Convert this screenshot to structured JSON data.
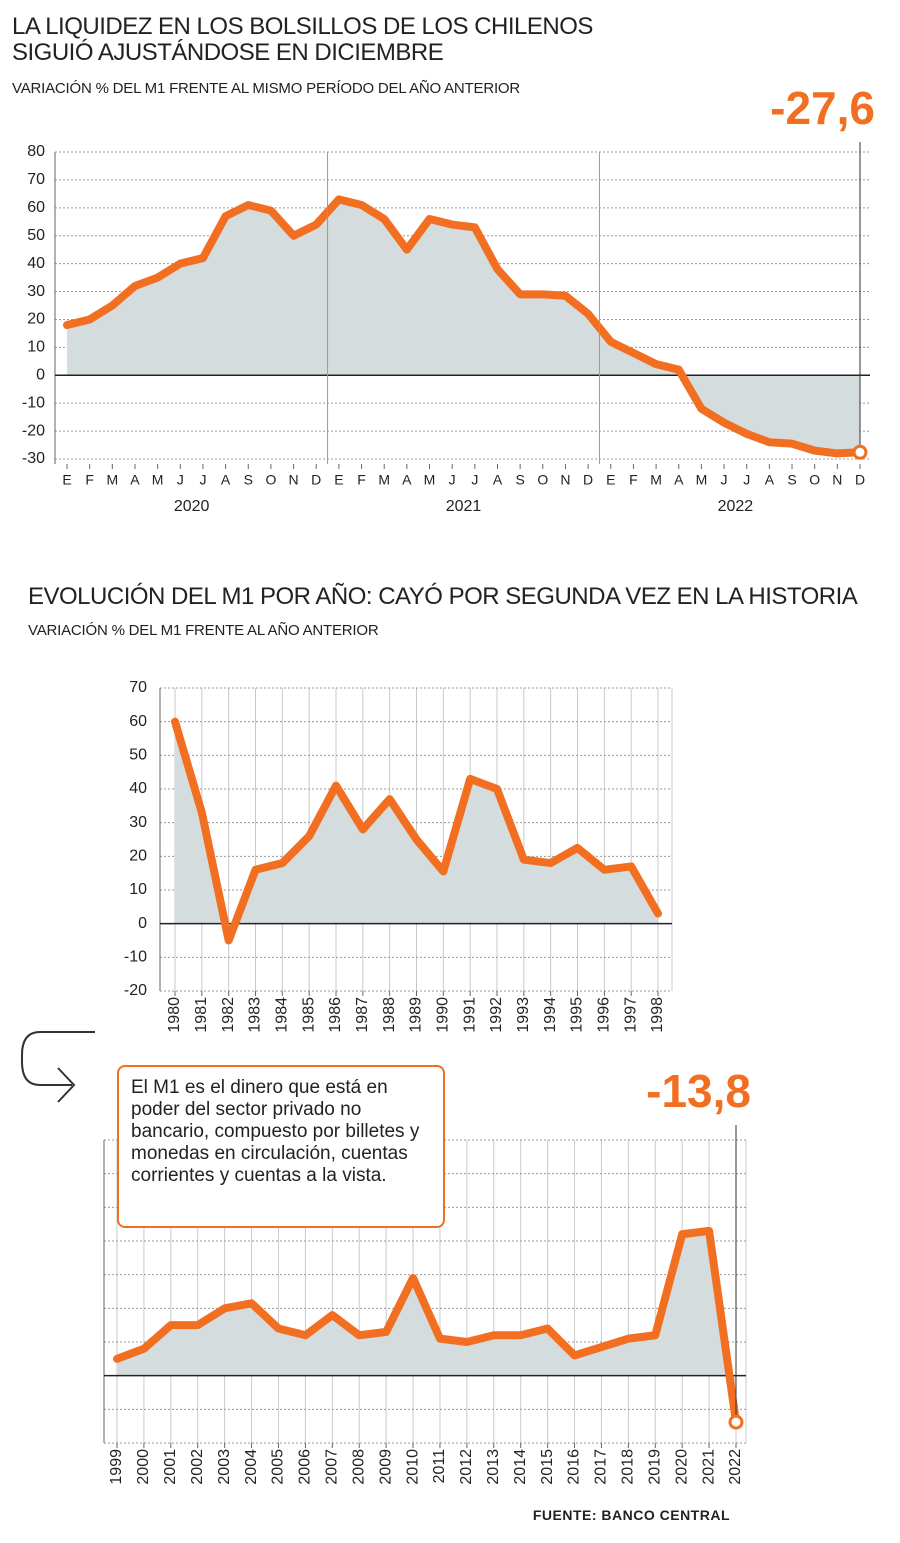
{
  "chart_data": [
    {
      "type": "line",
      "title": "LA LIQUIDEZ EN LOS BOLSILLOS DE LOS CHILENOS SIGUIÓ AJUSTÁNDOSE EN DICIEMBRE",
      "subtitle": "VARIACIÓN % DEL M1 FRENTE AL MISMO PERÍODO DEL AÑO ANTERIOR",
      "categories": [
        "E",
        "F",
        "M",
        "A",
        "M",
        "J",
        "J",
        "A",
        "S",
        "O",
        "N",
        "D",
        "E",
        "F",
        "M",
        "A",
        "M",
        "J",
        "J",
        "A",
        "S",
        "O",
        "N",
        "D",
        "E",
        "F",
        "M",
        "A",
        "M",
        "J",
        "J",
        "A",
        "S",
        "O",
        "N",
        "D"
      ],
      "groups": [
        "2020",
        "2021",
        "2022"
      ],
      "series": [
        {
          "color": "#f26f21",
          "values": [
            18,
            20,
            25,
            32,
            35,
            40,
            42,
            57,
            61,
            59,
            50,
            54,
            63,
            61,
            56,
            45,
            56,
            54,
            53,
            38,
            29,
            29,
            28.5,
            22,
            12,
            8,
            4,
            2,
            -12,
            -17,
            -21,
            -24,
            -24.5,
            -27,
            -28,
            -27.6
          ],
          "value_labels": [
            null,
            null,
            null,
            null,
            null,
            null,
            null,
            null,
            null,
            null,
            null,
            null,
            null,
            null,
            null,
            null,
            null,
            null,
            null,
            null,
            null,
            null,
            null,
            null,
            null,
            null,
            null,
            null,
            null,
            null,
            null,
            null,
            null,
            null,
            null,
            "-27,6"
          ]
        }
      ],
      "ylim": [
        -30,
        80
      ],
      "yticks": [
        -30,
        -20,
        -10,
        0,
        10,
        20,
        30,
        40,
        50,
        60,
        70,
        80
      ],
      "grid": true,
      "area_color": "#d5dcdd"
    },
    {
      "type": "line",
      "title": "EVOLUCIÓN DEL M1 POR AÑO: CAYÓ POR SEGUNDA VEZ EN LA HISTORIA",
      "subtitle": "VARIACIÓN % DEL M1 FRENTE AL AÑO ANTERIOR",
      "categories": [
        "1980",
        "1981",
        "1982",
        "1983",
        "1984",
        "1985",
        "1986",
        "1987",
        "1988",
        "1989",
        "1990",
        "1991",
        "1992",
        "1993",
        "1994",
        "1995",
        "1996",
        "1997",
        "1998"
      ],
      "series": [
        {
          "color": "#f26f21",
          "values": [
            60,
            33,
            -5,
            16,
            18,
            26,
            41,
            28,
            37,
            25,
            15.5,
            43,
            40,
            19,
            18,
            22.5,
            16,
            17,
            3
          ]
        }
      ],
      "ylim": [
        -20,
        70
      ],
      "yticks": [
        -20,
        -10,
        0,
        10,
        20,
        30,
        40,
        50,
        60,
        70
      ],
      "grid": true,
      "area_color": "#d5dcdd"
    },
    {
      "type": "line",
      "categories": [
        "1999",
        "2000",
        "2001",
        "2002",
        "2003",
        "2004",
        "2005",
        "2006",
        "2007",
        "2008",
        "2009",
        "2010",
        "2011",
        "2012",
        "2013",
        "2014",
        "2015",
        "2016",
        "2017",
        "2018",
        "2019",
        "2020",
        "2021",
        "2022"
      ],
      "series": [
        {
          "color": "#f26f21",
          "values": [
            5,
            8,
            15,
            15,
            20,
            21.5,
            14,
            12,
            18,
            12,
            13,
            29,
            11,
            10,
            12,
            12,
            14,
            6,
            8.5,
            11,
            12,
            42,
            43,
            -13.8
          ],
          "value_labels": [
            null,
            null,
            null,
            null,
            null,
            null,
            null,
            null,
            null,
            null,
            null,
            null,
            null,
            null,
            null,
            null,
            null,
            null,
            null,
            null,
            null,
            null,
            null,
            "-13,8"
          ]
        }
      ],
      "ylim": [
        -20,
        70
      ],
      "yticks": [
        -20,
        -10,
        0,
        10,
        20,
        30,
        40,
        50,
        60,
        70
      ],
      "grid": true,
      "show_ytick_labels": false,
      "area_color": "#d5dcdd",
      "annotation": "El M1 es el dinero que está en poder del sector privado no bancario, compuesto por billetes y monedas en circulación, cuentas corrientes y cuentas a la vista.",
      "source": "FUENTE: BANCO CENTRAL"
    }
  ]
}
